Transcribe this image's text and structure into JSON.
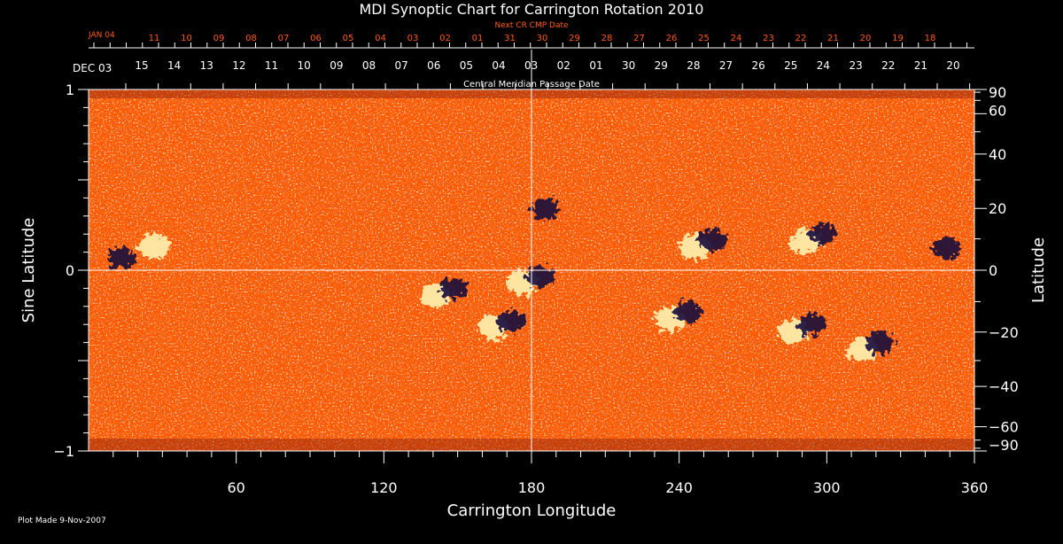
{
  "title": "MDI Synoptic Chart for Carrington Rotation 2010",
  "footer": "Plot Made  9-Nov-2007",
  "colors": {
    "background": "#000000",
    "foreground": "#ffffff",
    "next_cr_color": "#ff5a14",
    "magnetogram_base": "#ff5a00",
    "positive_polarity": "#fff2b0",
    "negative_polarity": "#140a3c"
  },
  "chart_data": {
    "type": "heatmap",
    "title": "MDI Synoptic Chart for Carrington Rotation 2010",
    "xlabel": "Carrington Longitude",
    "ylabel_left": "Sine Latitude",
    "ylabel_right": "Latitude",
    "xlim": [
      0,
      360
    ],
    "ylim": [
      -1,
      1
    ],
    "x_ticks": [
      60,
      120,
      180,
      240,
      300,
      360
    ],
    "x_tick_labels": [
      "60",
      "120",
      "180",
      "240",
      "300",
      "360"
    ],
    "y_left_ticks": [
      1,
      0,
      -1
    ],
    "y_left_tick_labels": [
      "1",
      "0",
      "−1"
    ],
    "y_right_ticks_deg": [
      90,
      60,
      40,
      20,
      0,
      -20,
      -40,
      -60,
      -90
    ],
    "y_right_tick_labels": [
      "90",
      "60",
      "40",
      "20",
      "0",
      "−20",
      "−40",
      "−60",
      "−90"
    ],
    "reference_lines": {
      "longitude": 180,
      "sine_latitude": 0
    },
    "top_axis_title": "Central Meridian Passage Date",
    "top_axis_start": "DEC 03",
    "top_axis_dates": [
      "15",
      "14",
      "13",
      "12",
      "11",
      "10",
      "09",
      "08",
      "07",
      "06",
      "05",
      "04",
      "03",
      "02",
      "01",
      "30",
      "29",
      "28",
      "27",
      "26",
      "25",
      "24",
      "23",
      "22",
      "21",
      "20"
    ],
    "next_cr_title": "Next CR CMP Date",
    "next_cr_start": "JAN 04",
    "next_cr_dates": [
      "11",
      "10",
      "09",
      "08",
      "07",
      "06",
      "05",
      "04",
      "03",
      "02",
      "01",
      "31",
      "30",
      "29",
      "28",
      "27",
      "26",
      "25",
      "24",
      "23",
      "22",
      "21",
      "20",
      "19",
      "18"
    ],
    "active_regions": [
      {
        "lon": 10,
        "sinlat": 0.05,
        "polarity": "negative"
      },
      {
        "lon": 30,
        "sinlat": 0.15,
        "polarity": "positive"
      },
      {
        "lon": 145,
        "sinlat": -0.12,
        "polarity": "mixed"
      },
      {
        "lon": 168,
        "sinlat": -0.3,
        "polarity": "mixed"
      },
      {
        "lon": 180,
        "sinlat": -0.05,
        "polarity": "mixed"
      },
      {
        "lon": 182,
        "sinlat": 0.32,
        "polarity": "negative"
      },
      {
        "lon": 240,
        "sinlat": -0.25,
        "polarity": "mixed"
      },
      {
        "lon": 250,
        "sinlat": 0.15,
        "polarity": "mixed"
      },
      {
        "lon": 295,
        "sinlat": 0.18,
        "polarity": "mixed"
      },
      {
        "lon": 290,
        "sinlat": -0.32,
        "polarity": "mixed"
      },
      {
        "lon": 318,
        "sinlat": -0.42,
        "polarity": "mixed"
      },
      {
        "lon": 345,
        "sinlat": 0.1,
        "polarity": "negative"
      }
    ]
  }
}
